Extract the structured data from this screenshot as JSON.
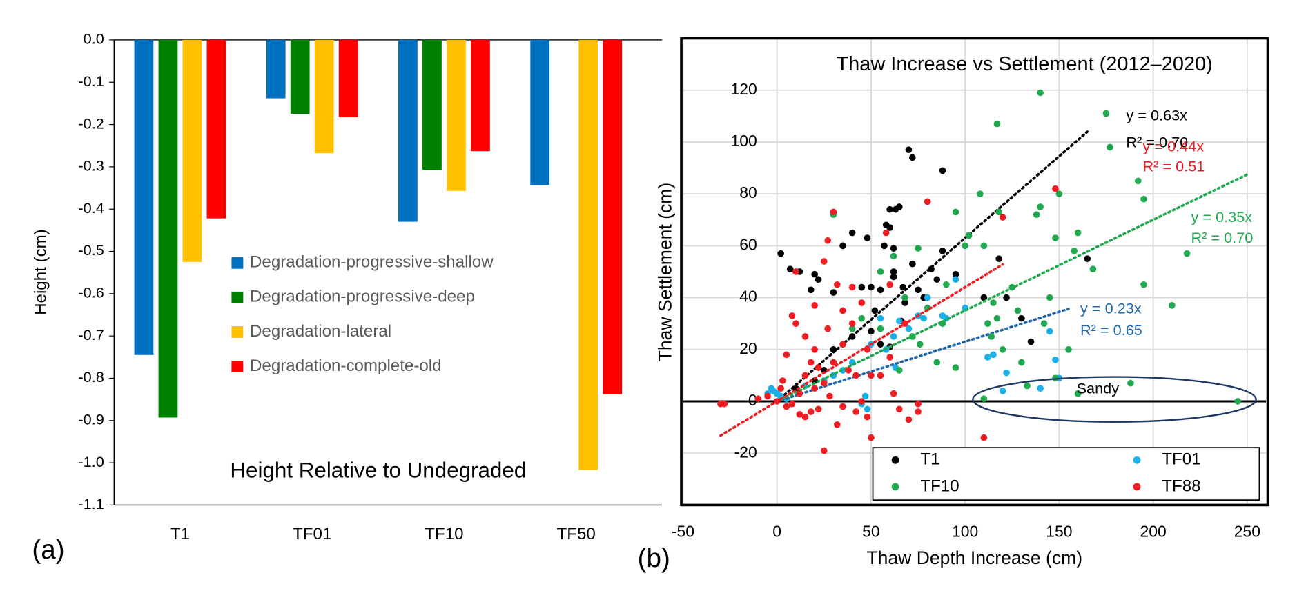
{
  "chart_data": [
    {
      "type": "bar",
      "panel_label": "(a)",
      "ylabel": "Height (cm)",
      "annotation": "Height Relative to Undegraded",
      "categories": [
        "T1",
        "TF01",
        "TF10",
        "TF50"
      ],
      "series": [
        {
          "name": "Degradation-progressive-shallow",
          "color": "#0070c0",
          "values": [
            -0.745,
            -0.138,
            -0.43,
            -0.343
          ]
        },
        {
          "name": "Degradation-progressive-deep",
          "color": "#008000",
          "values": [
            -0.893,
            -0.175,
            -0.307,
            null
          ]
        },
        {
          "name": "Degradation-lateral",
          "color": "#ffc000",
          "values": [
            -0.525,
            -0.268,
            -0.357,
            -1.017
          ]
        },
        {
          "name": "Degradation-complete-old",
          "color": "#ff0000",
          "values": [
            -0.422,
            -0.183,
            -0.263,
            -0.838
          ]
        }
      ],
      "ylim": [
        -1.1,
        0
      ],
      "yticks": [
        {
          "value": 0,
          "label": "0.0"
        },
        -0.1,
        -0.2,
        -0.3,
        -0.4,
        -0.5,
        -0.6,
        -0.7,
        -0.8,
        -0.9,
        {
          "value": -1,
          "label": "-1.0"
        },
        -1.1
      ]
    },
    {
      "type": "scatter",
      "panel_label": "(b)",
      "title": "Thaw Increase vs Settlement (2012–2020)",
      "xlabel": "Thaw Depth Increase (cm)",
      "ylabel": "Thaw Settlement (cm)",
      "xlim": [
        -50,
        260
      ],
      "xticks": [
        -50,
        0,
        50,
        100,
        150,
        200,
        250
      ],
      "ylim": [
        -40,
        140
      ],
      "yticks": [
        -20,
        0,
        20,
        40,
        60,
        80,
        100,
        120
      ],
      "grid": true,
      "series": [
        {
          "name": "T1",
          "color": "#000000",
          "x": [
            2,
            7,
            12,
            18,
            20,
            22,
            30,
            35,
            40,
            45,
            48,
            50,
            52,
            55,
            55,
            57,
            58,
            60,
            60,
            62,
            62,
            63,
            65,
            66,
            67,
            70,
            72,
            72,
            75,
            78,
            80,
            82,
            85,
            88,
            88,
            95,
            110,
            118,
            122,
            130,
            135,
            165,
            10,
            20,
            25,
            30,
            40,
            50,
            60,
            62,
            68
          ],
          "y": [
            57,
            51,
            50,
            43,
            49,
            47,
            42,
            60,
            65,
            44,
            63,
            44,
            35,
            22,
            43,
            60,
            68,
            74,
            67,
            59,
            50,
            74,
            75,
            31,
            44,
            97,
            94,
            53,
            43,
            40,
            77,
            51,
            47,
            58,
            89,
            49,
            40,
            55,
            40,
            32,
            23,
            55,
            5,
            8,
            12,
            20,
            25,
            27,
            21,
            48,
            38
          ],
          "trend": {
            "slope": 0.63,
            "xrange": [
              0,
              165
            ],
            "color": "#000000",
            "equation": "y = 0.63x",
            "r2": "R² = 0.70"
          }
        },
        {
          "name": "TF01",
          "color": "#1ab0e8",
          "x": [
            -5,
            -3,
            -2,
            0,
            2,
            5,
            15,
            25,
            30,
            35,
            40,
            45,
            47,
            48,
            50,
            55,
            58,
            62,
            63,
            65,
            70,
            72,
            75,
            78,
            80,
            88,
            90,
            95,
            100,
            112,
            115,
            120,
            122,
            140,
            145,
            148,
            150
          ],
          "y": [
            3,
            5,
            4,
            3,
            2,
            1,
            6,
            8,
            10,
            12,
            15,
            -1,
            2,
            -3,
            22,
            32,
            20,
            25,
            13,
            31,
            28,
            25,
            33,
            32,
            40,
            33,
            32,
            47,
            36,
            17,
            18,
            4,
            11,
            5,
            27,
            16,
            9
          ],
          "trend": {
            "slope": 0.23,
            "xrange": [
              0,
              155
            ],
            "color": "#2066a8",
            "equation": "y = 0.23x",
            "r2": "R² = 0.65"
          }
        },
        {
          "name": "TF10",
          "color": "#21a94f",
          "x": [
            30,
            40,
            45,
            55,
            55,
            62,
            65,
            68,
            72,
            75,
            76,
            80,
            85,
            88,
            90,
            95,
            95,
            100,
            102,
            108,
            110,
            112,
            114,
            115,
            117,
            118,
            120,
            125,
            128,
            130,
            133,
            138,
            140,
            140,
            142,
            145,
            148,
            148,
            150,
            155,
            158,
            160,
            168,
            175,
            177,
            188,
            192,
            195,
            195,
            210,
            218,
            245,
            117,
            110,
            160
          ],
          "y": [
            72,
            28,
            32,
            50,
            28,
            56,
            12,
            40,
            25,
            59,
            22,
            36,
            15,
            30,
            45,
            13,
            73,
            60,
            64,
            80,
            60,
            30,
            25,
            38,
            32,
            73,
            20,
            44,
            35,
            15,
            6,
            72,
            75,
            119,
            30,
            40,
            9,
            63,
            80,
            20,
            58,
            65,
            51,
            111,
            98,
            7,
            85,
            78,
            45,
            37,
            57,
            0,
            107,
            1,
            3
          ],
          "trend": {
            "slope": 0.35,
            "xrange": [
              0,
              250
            ],
            "color": "#21a94f",
            "equation": "y = 0.35x",
            "r2": "R² = 0.70"
          }
        },
        {
          "name": "TF88",
          "color": "#ee1d23",
          "x": [
            -30,
            -28,
            -10,
            -5,
            0,
            2,
            3,
            5,
            5,
            8,
            8,
            10,
            10,
            12,
            12,
            15,
            15,
            18,
            18,
            20,
            20,
            20,
            22,
            22,
            25,
            25,
            25,
            27,
            27,
            28,
            30,
            30,
            32,
            32,
            35,
            35,
            38,
            40,
            40,
            42,
            42,
            45,
            45,
            48,
            48,
            50,
            50,
            55,
            58,
            60,
            62,
            65,
            70,
            75,
            75,
            80,
            110,
            120,
            148,
            60,
            68,
            35,
            15
          ],
          "y": [
            -1,
            -1,
            1,
            2,
            0,
            5,
            8,
            18,
            -2,
            -1,
            33,
            30,
            50,
            3,
            -5,
            -6,
            10,
            15,
            -4,
            20,
            37,
            5,
            13,
            -3,
            -19,
            54,
            7,
            28,
            62,
            2,
            73,
            15,
            -9,
            45,
            22,
            -2,
            12,
            44,
            30,
            -4,
            10,
            0,
            38,
            20,
            -6,
            -14,
            10,
            10,
            65,
            17,
            3,
            -3,
            -7,
            -1,
            -4,
            77,
            -14,
            71,
            82,
            45,
            30,
            35,
            25
          ],
          "trend": {
            "slope": 0.44,
            "xrange": [
              -30,
              120
            ],
            "color": "#ee1d23",
            "equation": "y = 0.44x",
            "r2": "R² = 0.51"
          }
        }
      ],
      "annotations": [
        {
          "text": "Sandy"
        }
      ]
    }
  ]
}
